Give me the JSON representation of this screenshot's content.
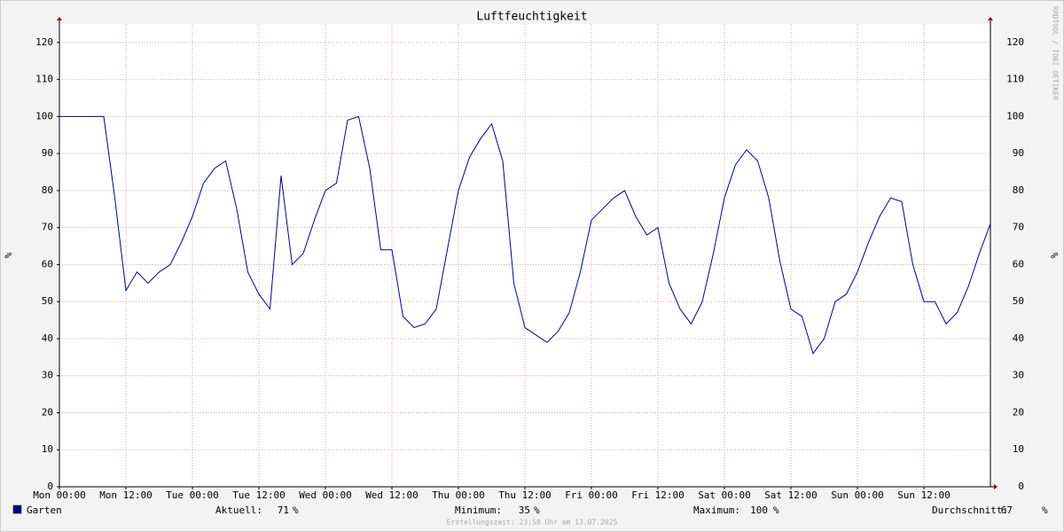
{
  "chart_data": {
    "type": "line",
    "title": "Luftfeuchtigkeit",
    "unit": "%",
    "credit": "RRDTOOL / TOBI OETIKER",
    "footer": "Erstellungszeit: 23:58 Uhr am 13.07.2025",
    "x": [
      0,
      2,
      4,
      6,
      8,
      10,
      12,
      14,
      16,
      18,
      20,
      22,
      24,
      26,
      28,
      30,
      32,
      34,
      36,
      38,
      40,
      42,
      44,
      46,
      48,
      50,
      52,
      54,
      56,
      58,
      60,
      62,
      64,
      66,
      68,
      70,
      72,
      74,
      76,
      78,
      80,
      82,
      84,
      86,
      88,
      90,
      92,
      94,
      96,
      98,
      100,
      102,
      104,
      106,
      108,
      110,
      112,
      114,
      116,
      118,
      120,
      122,
      124,
      126,
      128,
      130,
      132,
      134,
      136,
      138,
      140,
      142,
      144,
      146,
      148,
      150,
      152,
      154,
      156,
      158,
      160,
      162,
      164,
      166,
      168
    ],
    "series": [
      {
        "name": "Garten",
        "color": "#00008b",
        "values": [
          100,
          100,
          100,
          100,
          100,
          78,
          53,
          58,
          55,
          58,
          60,
          66,
          73,
          82,
          86,
          88,
          75,
          58,
          52,
          48,
          84,
          60,
          63,
          72,
          80,
          82,
          99,
          100,
          86,
          64,
          64,
          46,
          43,
          44,
          48,
          64,
          80,
          89,
          94,
          98,
          88,
          55,
          43,
          41,
          39,
          42,
          47,
          58,
          72,
          75,
          78,
          80,
          73,
          68,
          70,
          55,
          48,
          44,
          50,
          63,
          78,
          87,
          91,
          88,
          78,
          61,
          48,
          46,
          36,
          40,
          50,
          52,
          58,
          66,
          73,
          78,
          77,
          60,
          50,
          50,
          44,
          47,
          54,
          63,
          71
        ]
      }
    ],
    "xlim": [
      0,
      168
    ],
    "xticks": [
      {
        "value": 0,
        "label": "Mon 00:00"
      },
      {
        "value": 12,
        "label": "Mon 12:00"
      },
      {
        "value": 24,
        "label": "Tue 00:00"
      },
      {
        "value": 36,
        "label": "Tue 12:00"
      },
      {
        "value": 48,
        "label": "Wed 00:00"
      },
      {
        "value": 60,
        "label": "Wed 12:00"
      },
      {
        "value": 72,
        "label": "Thu 00:00"
      },
      {
        "value": 84,
        "label": "Thu 12:00"
      },
      {
        "value": 96,
        "label": "Fri 00:00"
      },
      {
        "value": 108,
        "label": "Fri 12:00"
      },
      {
        "value": 120,
        "label": "Sat 00:00"
      },
      {
        "value": 132,
        "label": "Sat 12:00"
      },
      {
        "value": 144,
        "label": "Sun 00:00"
      },
      {
        "value": 156,
        "label": "Sun 12:00"
      }
    ],
    "ylim": [
      0,
      125
    ],
    "yticks": [
      0,
      10,
      20,
      30,
      40,
      50,
      60,
      70,
      80,
      90,
      100,
      110,
      120
    ],
    "grid": true,
    "stats": [
      {
        "label": "Aktuell:",
        "value": 71
      },
      {
        "label": "Minimum:",
        "value": 35
      },
      {
        "label": "Maximum:",
        "value": 100
      },
      {
        "label": "Durchschnitt:",
        "value": 67
      }
    ]
  }
}
